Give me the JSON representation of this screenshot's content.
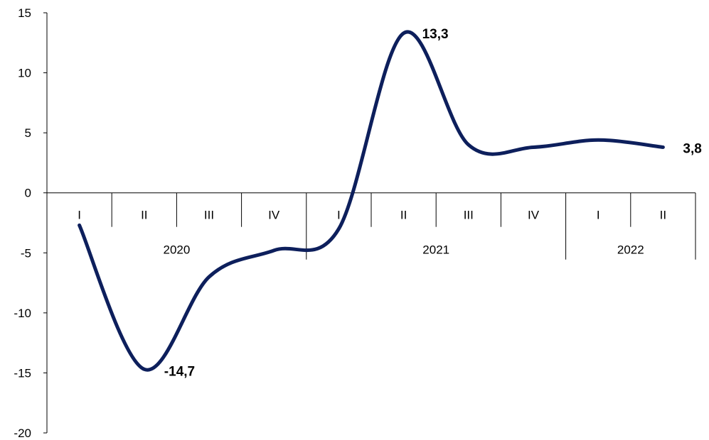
{
  "chart_data": {
    "type": "line",
    "categories": [
      "I",
      "II",
      "III",
      "IV",
      "I",
      "II",
      "III",
      "IV",
      "I",
      "II"
    ],
    "groups": [
      {
        "label": "2020",
        "count": 4
      },
      {
        "label": "2021",
        "count": 4
      },
      {
        "label": "2022",
        "count": 2
      }
    ],
    "series": [
      {
        "values": [
          -2.7,
          -14.7,
          -7.0,
          -4.8,
          -3.0,
          13.3,
          4.0,
          3.8,
          4.4,
          3.8
        ]
      }
    ],
    "data_labels": [
      {
        "index": 1,
        "text": "-14,7"
      },
      {
        "index": 5,
        "text": "13,3"
      },
      {
        "index": 9,
        "text": "3,8"
      }
    ],
    "yticks": [
      "15",
      "10",
      "5",
      "0",
      "-5",
      "-10",
      "-15",
      "-20"
    ],
    "ylim": [
      -20,
      15
    ],
    "ystep": 5,
    "line_color": "#0d1f5c",
    "grid": false,
    "legend": "none"
  }
}
